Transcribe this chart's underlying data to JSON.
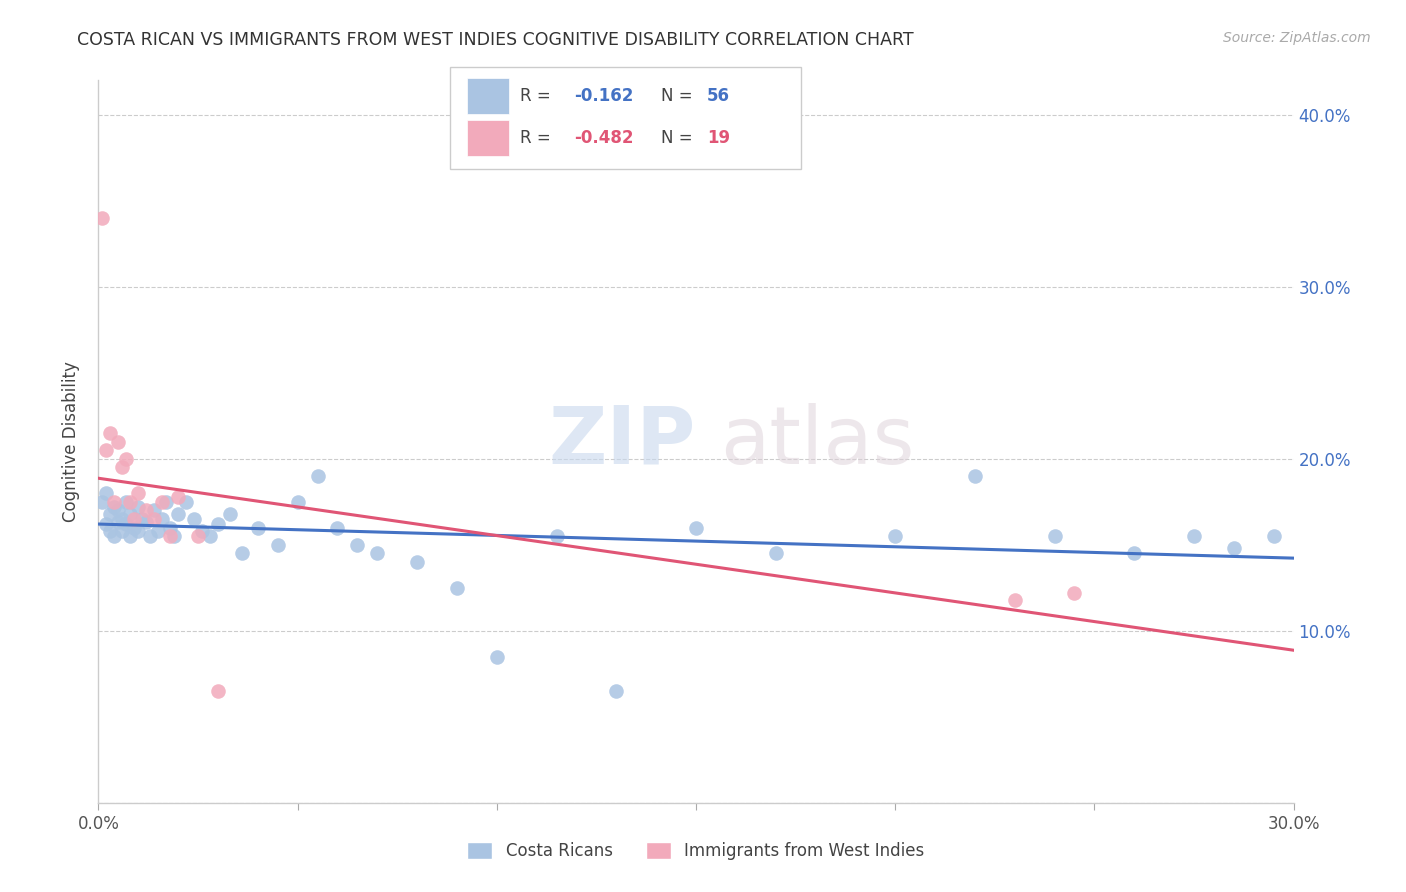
{
  "title": "COSTA RICAN VS IMMIGRANTS FROM WEST INDIES COGNITIVE DISABILITY CORRELATION CHART",
  "source": "Source: ZipAtlas.com",
  "ylabel": "Cognitive Disability",
  "xlim": [
    0.0,
    0.3
  ],
  "ylim": [
    0.0,
    0.42
  ],
  "xticks": [
    0.0,
    0.05,
    0.1,
    0.15,
    0.2,
    0.25,
    0.3
  ],
  "yticks": [
    0.0,
    0.1,
    0.2,
    0.3,
    0.4
  ],
  "blue_color": "#aac4e2",
  "pink_color": "#f2aabb",
  "blue_line_color": "#4472C4",
  "pink_line_color": "#e05575",
  "legend_text_color": "#4472C4",
  "costa_ricans_x": [
    0.001,
    0.002,
    0.002,
    0.003,
    0.003,
    0.004,
    0.004,
    0.005,
    0.005,
    0.006,
    0.006,
    0.007,
    0.007,
    0.008,
    0.008,
    0.009,
    0.01,
    0.01,
    0.011,
    0.012,
    0.013,
    0.014,
    0.015,
    0.016,
    0.017,
    0.018,
    0.019,
    0.02,
    0.022,
    0.024,
    0.026,
    0.028,
    0.03,
    0.033,
    0.036,
    0.04,
    0.045,
    0.05,
    0.055,
    0.06,
    0.065,
    0.07,
    0.08,
    0.09,
    0.1,
    0.115,
    0.13,
    0.15,
    0.17,
    0.2,
    0.22,
    0.24,
    0.26,
    0.275,
    0.285,
    0.295
  ],
  "costa_ricans_y": [
    0.175,
    0.18,
    0.162,
    0.168,
    0.158,
    0.172,
    0.155,
    0.163,
    0.17,
    0.165,
    0.158,
    0.175,
    0.162,
    0.155,
    0.168,
    0.16,
    0.172,
    0.158,
    0.165,
    0.163,
    0.155,
    0.17,
    0.158,
    0.165,
    0.175,
    0.16,
    0.155,
    0.168,
    0.175,
    0.165,
    0.158,
    0.155,
    0.162,
    0.168,
    0.145,
    0.16,
    0.15,
    0.175,
    0.19,
    0.16,
    0.15,
    0.145,
    0.14,
    0.125,
    0.085,
    0.155,
    0.065,
    0.16,
    0.145,
    0.155,
    0.19,
    0.155,
    0.145,
    0.155,
    0.148,
    0.155
  ],
  "west_indies_x": [
    0.001,
    0.002,
    0.003,
    0.004,
    0.005,
    0.006,
    0.007,
    0.008,
    0.009,
    0.01,
    0.012,
    0.014,
    0.016,
    0.018,
    0.02,
    0.025,
    0.03,
    0.23,
    0.245
  ],
  "west_indies_y": [
    0.34,
    0.205,
    0.215,
    0.175,
    0.21,
    0.195,
    0.2,
    0.175,
    0.165,
    0.18,
    0.17,
    0.165,
    0.175,
    0.155,
    0.178,
    0.155,
    0.065,
    0.118,
    0.122
  ]
}
